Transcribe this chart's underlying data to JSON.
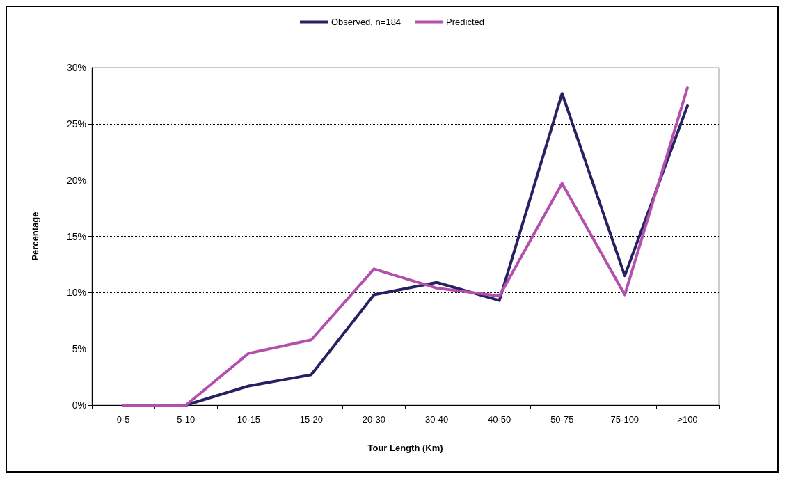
{
  "chart_data": {
    "type": "line",
    "xlabel": "Tour Length (Km)",
    "ylabel": "Percentage",
    "categories": [
      "0-5",
      "5-10",
      "10-15",
      "15-20",
      "20-30",
      "30-40",
      "40-50",
      "50-75",
      "75-100",
      ">100"
    ],
    "series": [
      {
        "name": "Observed, n=184",
        "color": "#262262",
        "values": [
          0,
          0,
          1.7,
          2.7,
          9.8,
          10.9,
          9.3,
          27.7,
          11.5,
          26.6
        ]
      },
      {
        "name": "Predicted",
        "color": "#b44fae",
        "values": [
          0,
          0,
          4.6,
          5.8,
          12.1,
          10.4,
          9.7,
          19.7,
          9.8,
          28.2
        ]
      }
    ],
    "ylim": [
      0,
      30
    ],
    "yticks": [
      {
        "value": 0,
        "label": "0%"
      },
      {
        "value": 5,
        "label": "5%"
      },
      {
        "value": 10,
        "label": "10%"
      },
      {
        "value": 15,
        "label": "15%"
      },
      {
        "value": 20,
        "label": "20%"
      },
      {
        "value": 25,
        "label": "25%"
      },
      {
        "value": 30,
        "label": "30%"
      }
    ],
    "grid": "y",
    "legend": "top",
    "marker": "none",
    "line_style": "solid"
  }
}
